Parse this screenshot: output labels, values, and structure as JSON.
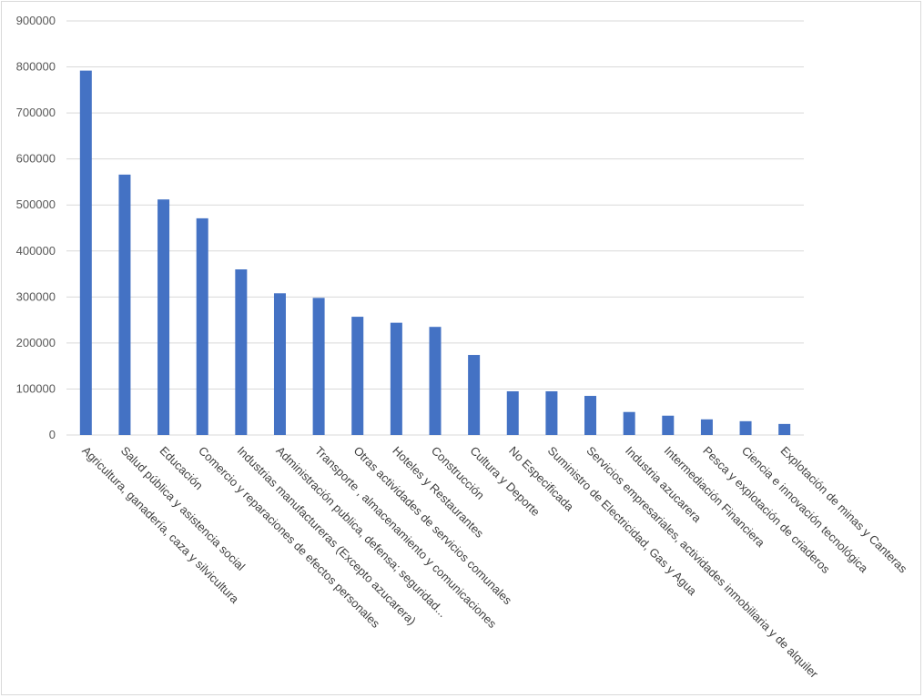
{
  "chart_data": {
    "type": "bar",
    "title": "",
    "xlabel": "",
    "ylabel": "",
    "ylim": [
      0,
      900000
    ],
    "yticks": [
      "0",
      "100000",
      "200000",
      "300000",
      "400000",
      "500000",
      "600000",
      "700000",
      "800000",
      "900000"
    ],
    "grid": true,
    "legend": "none",
    "bar_color": "#4472c4",
    "categories": [
      "Agricultura, ganadería, caza y silvicultura",
      "Salud pública y asistencia social",
      "Educación",
      "Comercio y reparaciones de efectos personales",
      "Industrias manufactureras (Excepto azucarera)",
      "Administración publica, defensa; seguridad...",
      "Transporte , almacenamiento y comunicaciones",
      "Otras actividades de servicios comunales",
      "Hoteles y Restaurantes",
      "Construcción",
      "Cultura y Deporte",
      "No Especificada",
      "Suministro de Electricidad, Gas y Agua",
      "Servicios empresariales, actividades inmobiliaria y de alquiler",
      "Industria azucarera",
      "Intermediación Financiera",
      "Pesca y explotación de criaderos",
      "Ciencia e innovación tecnológica",
      "Explotación de minas y Canteras"
    ],
    "values": [
      792000,
      566000,
      512000,
      471000,
      360000,
      308000,
      298000,
      257000,
      244000,
      235000,
      174000,
      95000,
      95000,
      85000,
      50000,
      42000,
      34000,
      30000,
      24000
    ]
  }
}
